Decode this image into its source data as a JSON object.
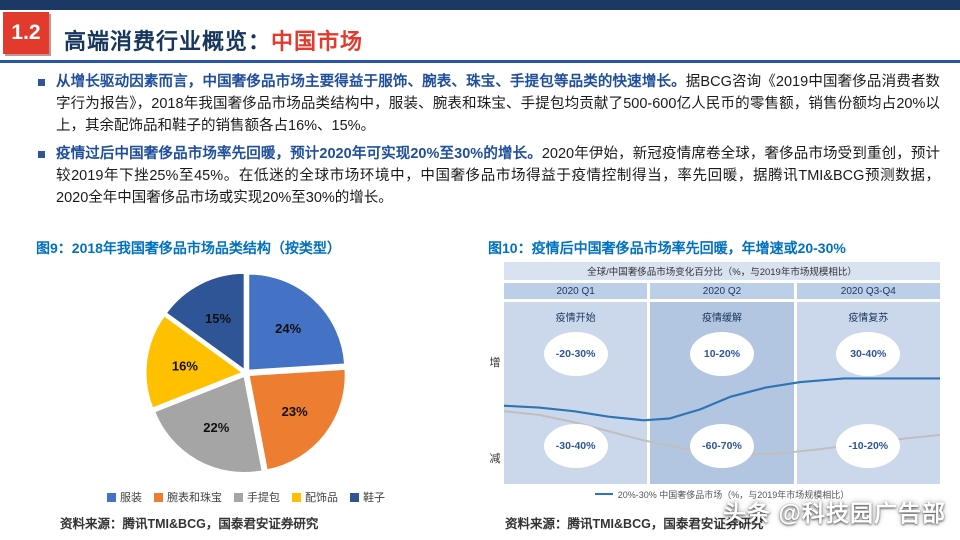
{
  "header": {
    "section_number": "1.2",
    "title_main": "高端消费行业概览：",
    "title_accent": "中国市场"
  },
  "colors": {
    "accent_red": "#E23B2E",
    "header_navy": "#1C3966",
    "figure_title_blue": "#0070C0",
    "bullet_lead_blue": "#1F4E9B"
  },
  "bullets": [
    {
      "lead": "从增长驱动因素而言，中国奢侈品市场主要得益于服饰、腕表、珠宝、手提包等品类的快速增长。",
      "rest": "据BCG咨询《2019中国奢侈品消费者数字行为报告》，2018年我国奢侈品市场品类结构中，服装、腕表和珠宝、手提包均贡献了500-600亿人民币的零售额，销售份额均占20%以上，其余配饰品和鞋子的销售额各占16%、15%。"
    },
    {
      "lead": "疫情过后中国奢侈品市场率先回暖，预计2020年可实现20%至30%的增长。",
      "rest": "2020年伊始，新冠疫情席卷全球，奢侈品市场受到重创，预计较2019年下挫25%至45%。在低迷的全球市场环境中，中国奢侈品市场得益于疫情控制得当，率先回暖，据腾讯TMI&BCG预测数据，2020全年中国奢侈品市场或实现20%至30%的增长。"
    }
  ],
  "figure9": {
    "title": "图9：2018年我国奢侈品市场品类结构（按类型）"
  },
  "figure10": {
    "title": "图10：疫情后中国奢侈品市场率先回暖，年增速或20-30%",
    "chart_title": "全球/中国奢侈品市场变化百分比（%，与2019年市场规模相比）",
    "axis_top": "增",
    "axis_bottom": "减",
    "legend_text": "20%-30% 中国奢侈品市场（%，与2019年市场规模相比）"
  },
  "sources": {
    "left": "资料来源：腾讯TMI&BCG，国泰君安证券研究",
    "right": "资料来源：腾讯TMI&BCG，国泰君安证券研究"
  },
  "watermark": "头条 @科技园广告部",
  "chart_data": [
    {
      "type": "pie",
      "title": "图9：2018年我国奢侈品市场品类结构（按类型）",
      "categories": [
        "服装",
        "腕表和珠宝",
        "手提包",
        "配饰品",
        "鞋子"
      ],
      "values": [
        24,
        23,
        22,
        16,
        15
      ],
      "unit": "%",
      "colors": [
        "#4472C4",
        "#ED7D31",
        "#A5A5A5",
        "#FFC000",
        "#2F5597"
      ],
      "legend_position": "bottom"
    },
    {
      "type": "table",
      "title": "全球/中国奢侈品市场变化百分比（%，与2019年市场规模相比）",
      "columns": [
        "2020 Q1",
        "2020 Q2",
        "2020 Q3-Q4"
      ],
      "phases": [
        "疫情开始",
        "疫情缓解",
        "疫情复苏"
      ],
      "series": [
        {
          "name": "中国奢侈品市场",
          "values": [
            "-20-30%",
            "10-20%",
            "30-40%"
          ],
          "color": "#2E75B6"
        },
        {
          "name": "全球奢侈品市场",
          "values": [
            "-30-40%",
            "-60-70%",
            "-10-20%"
          ],
          "color": "#BFBFBF"
        }
      ],
      "axis_top": "增",
      "axis_bottom": "减",
      "china_line": [
        [
          0,
          57
        ],
        [
          8,
          58
        ],
        [
          16,
          60
        ],
        [
          24,
          63
        ],
        [
          32,
          65
        ],
        [
          38,
          64
        ],
        [
          45,
          59
        ],
        [
          52,
          52
        ],
        [
          60,
          47
        ],
        [
          68,
          44
        ],
        [
          78,
          42
        ],
        [
          100,
          42
        ]
      ],
      "global_line": [
        [
          0,
          60
        ],
        [
          8,
          62
        ],
        [
          16,
          66
        ],
        [
          24,
          71
        ],
        [
          32,
          76
        ],
        [
          40,
          80
        ],
        [
          48,
          83
        ],
        [
          56,
          84
        ],
        [
          64,
          83
        ],
        [
          72,
          81
        ],
        [
          82,
          78
        ],
        [
          92,
          75
        ],
        [
          100,
          73
        ]
      ]
    }
  ]
}
